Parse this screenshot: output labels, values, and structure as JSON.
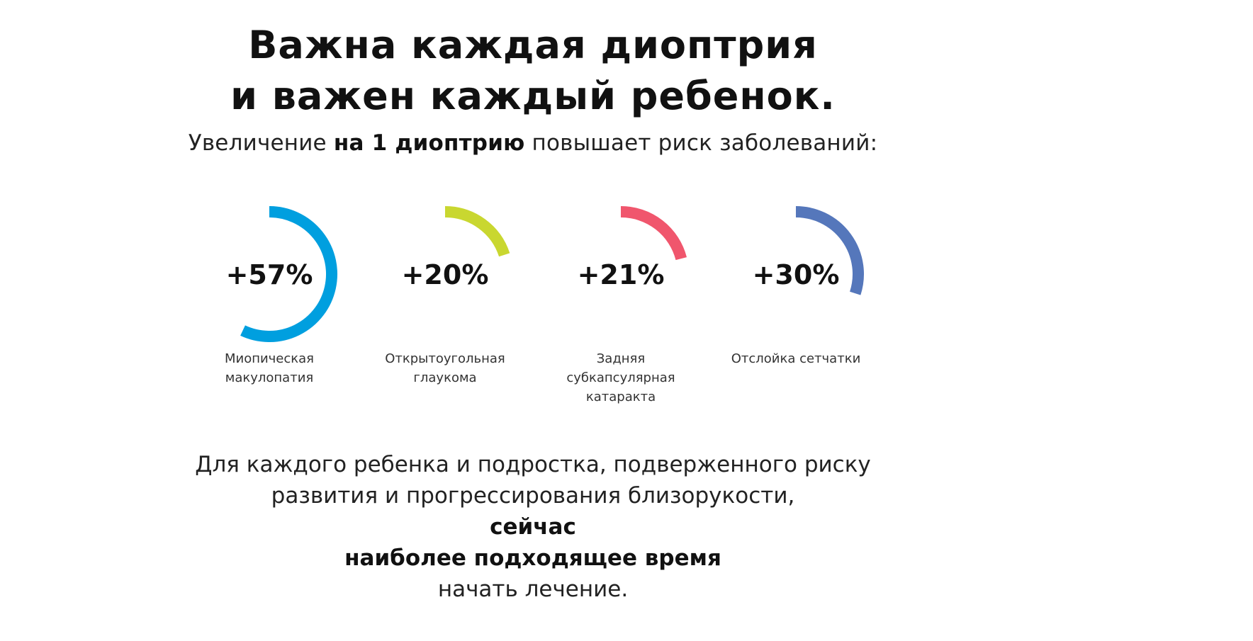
{
  "headline": {
    "line1": "Важна каждая диоптрия",
    "line2": "и важен каждый ребенок."
  },
  "subtitle": {
    "prefix": "Увеличение ",
    "emphasis": "на 1 диоптрию",
    "suffix": " повышает риск заболеваний:"
  },
  "stats": [
    {
      "value_text": "+57%",
      "label": "Миопическая\nмакулопатия",
      "arc_percent": 57,
      "color": "#009fdf"
    },
    {
      "value_text": "+20%",
      "label": "Открытоугольная\nглаукома",
      "arc_percent": 20,
      "color": "#c9d730"
    },
    {
      "value_text": "+21%",
      "label": "Задняя\nсубкапсулярная\nкатаракта",
      "arc_percent": 21,
      "color": "#f0566d"
    },
    {
      "value_text": "+30%",
      "label": "Отслойка сетчатки",
      "arc_percent": 30,
      "color": "#5577bb"
    }
  ],
  "footer": {
    "line1": "Для каждого ребенка и подростка, подверженного риску",
    "line2_text": "развития и прогрессирования близорукости, ",
    "line2_emphasis": "сейчас",
    "line3_emphasis": "наиболее подходящее время",
    "line3_text": " начать лечение."
  }
}
